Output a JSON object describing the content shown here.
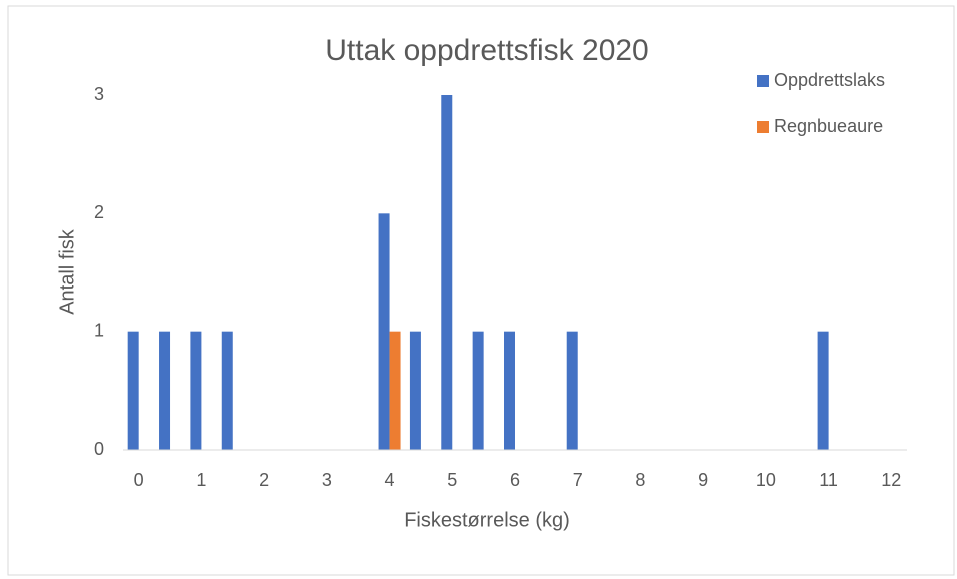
{
  "chart_data": {
    "type": "bar",
    "title": "Uttak oppdrettsfisk 2020",
    "x_label": "Fiskestørrelse (kg)",
    "y_label": "Antall fisk",
    "categories": [
      "0",
      null,
      "1",
      null,
      "2",
      null,
      "3",
      null,
      "4",
      null,
      "5",
      null,
      "6",
      null,
      "7",
      null,
      "8",
      null,
      "9",
      null,
      "10",
      null,
      "11",
      null,
      "12"
    ],
    "series": [
      {
        "name": "Oppdrettslaks",
        "color": "#4472c4",
        "values": [
          1,
          1,
          1,
          1,
          0,
          0,
          0,
          0,
          2,
          1,
          3,
          1,
          1,
          0,
          1,
          0,
          0,
          0,
          0,
          0,
          0,
          0,
          1,
          0,
          0
        ]
      },
      {
        "name": "Regnbueaure",
        "color": "#ed7d31",
        "values": [
          0,
          0,
          0,
          0,
          0,
          0,
          0,
          0,
          1,
          0,
          0,
          0,
          0,
          0,
          0,
          0,
          0,
          0,
          0,
          0,
          0,
          0,
          0,
          0,
          0
        ]
      }
    ],
    "ylim": [
      0,
      3
    ],
    "yticks": [
      0,
      1,
      2,
      3
    ],
    "grid": false,
    "legend": "top-right"
  }
}
